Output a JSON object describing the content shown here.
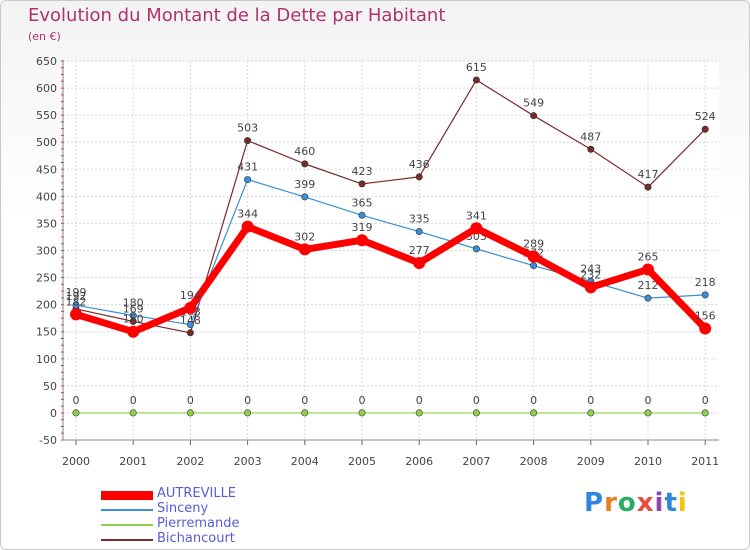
{
  "header": {
    "title": "Evolution du Montant de la Dette par Habitant",
    "subtitle": "(en €)"
  },
  "logo": {
    "text": "Proxiti",
    "letter_colors": [
      "#2e86de",
      "#e67e22",
      "#27ae60",
      "#e74c3c",
      "#8e44ad",
      "#2e86de",
      "#f1c40f"
    ]
  },
  "chart_data": {
    "type": "line",
    "title": "Evolution du Montant de la Dette par Habitant",
    "subtitle": "(en €)",
    "xlabel": "",
    "ylabel": "",
    "ylim": [
      -50,
      650
    ],
    "yticks": [
      -50,
      0,
      50,
      100,
      150,
      200,
      250,
      300,
      350,
      400,
      450,
      500,
      550,
      600,
      650
    ],
    "categories": [
      "2000",
      "2001",
      "2002",
      "2003",
      "2004",
      "2005",
      "2006",
      "2007",
      "2008",
      "2009",
      "2010",
      "2011"
    ],
    "grid": true,
    "legend_position": "bottom-left",
    "series": [
      {
        "name": "Bichancourt",
        "color": "#7a2a2a",
        "values": [
          192,
          169,
          148,
          503,
          460,
          423,
          436,
          615,
          549,
          487,
          417,
          524
        ],
        "labels": [
          "192",
          "169",
          "148",
          "503",
          "460",
          "423",
          "436",
          "615",
          "549",
          "487",
          "417",
          "524"
        ]
      },
      {
        "name": "Sinceny",
        "color": "#3a8fd8",
        "values": [
          199,
          180,
          163,
          431,
          399,
          365,
          335,
          303,
          272,
          243,
          212,
          218
        ],
        "labels": [
          "199",
          "180",
          "163",
          "431",
          "399",
          "365",
          "335",
          "303",
          "272",
          "243",
          "212",
          "218"
        ]
      },
      {
        "name": "Pierremande",
        "color": "#8fd04f",
        "values": [
          0,
          0,
          0,
          0,
          0,
          0,
          0,
          0,
          0,
          0,
          0,
          0
        ],
        "labels": [
          "0",
          "0",
          "0",
          "0",
          "0",
          "0",
          "0",
          "0",
          "0",
          "0",
          "0",
          "0"
        ]
      },
      {
        "name": "AUTREVILLE",
        "color": "#ff0000",
        "values": [
          182,
          150,
          194,
          344,
          302,
          319,
          277,
          341,
          289,
          232,
          265,
          156
        ],
        "labels": [
          "182",
          "150",
          "194",
          "344",
          "302",
          "319",
          "277",
          "341",
          "289",
          "232",
          "265",
          "156"
        ]
      }
    ],
    "legend": [
      "AUTREVILLE",
      "Sinceny",
      "Pierremande",
      "Bichancourt"
    ]
  }
}
